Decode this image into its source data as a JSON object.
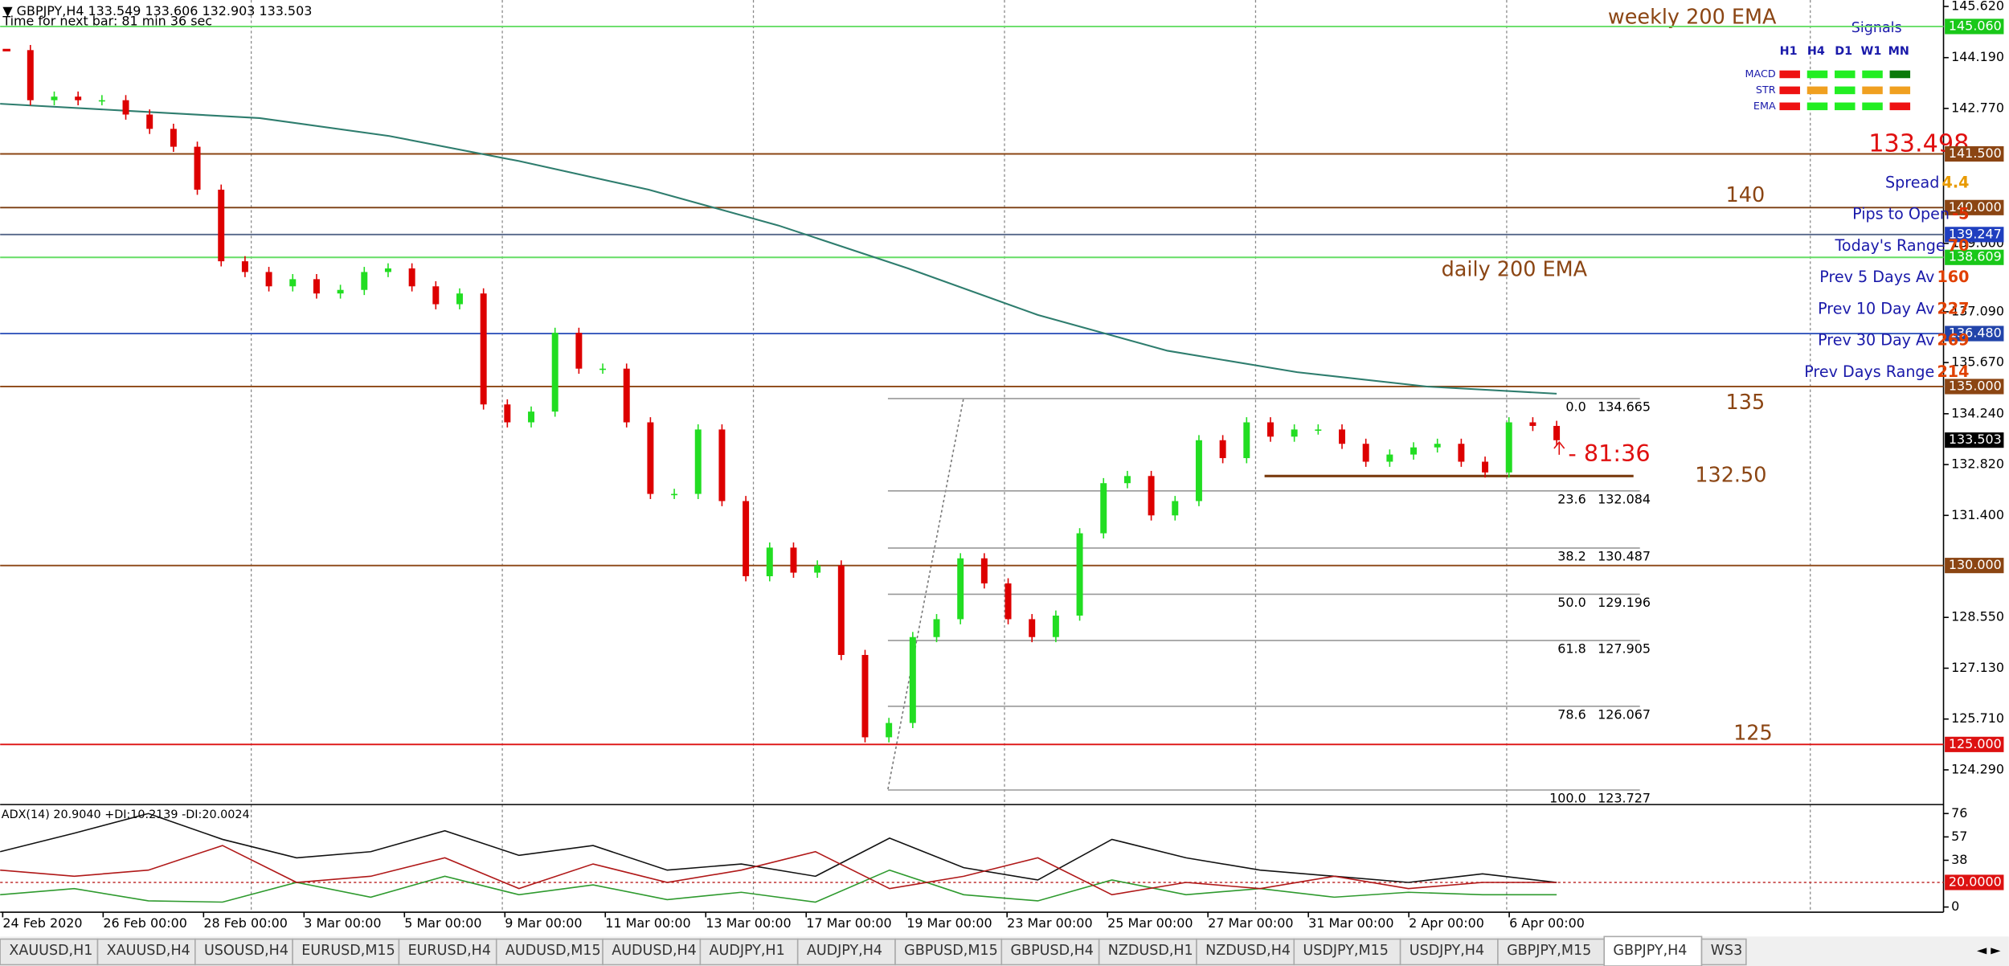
{
  "header": {
    "symbol_line": "▼ GBPJPY,H4  133.549 133.606 132.903 133.503",
    "timer": "Time for next bar: 81 min 36 sec"
  },
  "price_axis": {
    "ylim": [
      123.32,
      145.8
    ],
    "ticks": [
      {
        "value": 145.62,
        "label": "145.620"
      },
      {
        "value": 144.19,
        "label": "144.190"
      },
      {
        "value": 142.77,
        "label": "142.770"
      },
      {
        "value": 139,
        "label": "139.000"
      },
      {
        "value": 137.09,
        "label": "137.090"
      },
      {
        "value": 135.67,
        "label": "135.670"
      },
      {
        "value": 134.24,
        "label": "134.240"
      },
      {
        "value": 132.82,
        "label": "132.820"
      },
      {
        "value": 131.4,
        "label": "131.400"
      },
      {
        "value": 128.55,
        "label": "128.550"
      },
      {
        "value": 127.13,
        "label": "127.130"
      },
      {
        "value": 125.71,
        "label": "125.710"
      },
      {
        "value": 124.29,
        "label": "124.290"
      }
    ],
    "levels": [
      {
        "value": 145.06,
        "label": "145.060",
        "color": "#19c819",
        "line_color": "#66dd66"
      },
      {
        "value": 141.5,
        "label": "141.500",
        "color": "#8b4513",
        "line_color": "#8b4513"
      },
      {
        "value": 140,
        "label": "140.000",
        "color": "#8b4513",
        "line_color": "#7a3c10"
      },
      {
        "value": 139.247,
        "label": "139.247",
        "color": "#1f3fbf",
        "line_color": "#556688"
      },
      {
        "value": 138.609,
        "label": "138.609",
        "color": "#19c819",
        "line_color": "#66dd66"
      },
      {
        "value": 136.48,
        "label": "136.480",
        "color": "#2244aa",
        "line_color": "#3355bb"
      },
      {
        "value": 135,
        "label": "135.000",
        "color": "#8b4513",
        "line_color": "#8b4513"
      },
      {
        "value": 130,
        "label": "130.000",
        "color": "#8b4513",
        "line_color": "#8b4513"
      },
      {
        "value": 125,
        "label": "125.000",
        "color": "#dd1111",
        "line_color": "#dd1111"
      }
    ],
    "current_price": {
      "value": 133.503,
      "label": "133.503"
    }
  },
  "candles": {
    "up_color": "#22dd22",
    "down_color": "#dd0000",
    "closes": [
      144.4,
      143.0,
      143.1,
      143.0,
      143.0,
      142.6,
      142.2,
      141.7,
      140.5,
      138.5,
      138.2,
      137.8,
      138.0,
      137.6,
      137.7,
      138.2,
      138.3,
      137.8,
      137.3,
      137.6,
      134.5,
      134.0,
      134.3,
      136.5,
      135.5,
      135.5,
      134.0,
      132.0,
      132.0,
      133.8,
      131.8,
      129.7,
      130.5,
      129.8,
      130.0,
      127.5,
      125.2,
      125.6,
      128.0,
      128.5,
      130.2,
      129.5,
      128.5,
      128.0,
      128.6,
      130.9,
      132.3,
      132.5,
      131.4,
      131.8,
      133.5,
      133.0,
      134.0,
      133.6,
      133.8,
      133.8,
      133.4,
      132.9,
      133.1,
      133.3,
      133.4,
      132.9,
      132.6,
      134.0,
      133.9,
      133.5
    ]
  },
  "ema_long": {
    "color": "#2e7d6e",
    "values": [
      142.9,
      142.7,
      142.5,
      142.0,
      141.3,
      140.5,
      139.5,
      138.3,
      137.0,
      136.0,
      135.4,
      135.0,
      134.8
    ]
  },
  "fib": {
    "levels": [
      {
        "ratio": "0.0",
        "price": 134.665
      },
      {
        "ratio": "23.6",
        "price": 132.084
      },
      {
        "ratio": "38.2",
        "price": 130.487
      },
      {
        "ratio": "50.0",
        "price": 129.196
      },
      {
        "ratio": "61.8",
        "price": 127.905
      },
      {
        "ratio": "78.6",
        "price": 126.067
      },
      {
        "ratio": "100.0",
        "price": 123.727
      }
    ]
  },
  "annotations": {
    "weekly_ema": "weekly 200 EMA",
    "daily_ema": "daily 200 EMA",
    "level_140": "140",
    "level_135": "135",
    "level_13250": {
      "value": 132.5,
      "label": "132.50"
    },
    "level_125": "125",
    "countdown": "- 81:36"
  },
  "signals": {
    "title": "Signals",
    "columns": [
      "H1",
      "H4",
      "D1",
      "W1",
      "MN"
    ],
    "rows": [
      {
        "name": "MACD",
        "colors": [
          "#ee1111",
          "#22ee22",
          "#22ee22",
          "#22ee22",
          "#0a7a0a"
        ]
      },
      {
        "name": "STR",
        "colors": [
          "#ee1111",
          "#f0a020",
          "#22ee22",
          "#f0a020",
          "#f0a020"
        ]
      },
      {
        "name": "EMA",
        "colors": [
          "#ee1111",
          "#22ee22",
          "#22ee22",
          "#22ee22",
          "#ee1111"
        ]
      }
    ],
    "bid": "133.498",
    "info": [
      {
        "label": "Spread",
        "value": 4.4,
        "value_color": "#e89a00"
      },
      {
        "label": "Pips to Open",
        "value": -5,
        "value_color": "#e03000"
      },
      {
        "label": "Today's Range",
        "value": 70,
        "value_color": "#e04000"
      },
      {
        "label": "Prev 5 Days Av",
        "value": 160,
        "value_color": "#e04000"
      },
      {
        "label": "Prev 10 Day Av",
        "value": 227,
        "value_color": "#e04000"
      },
      {
        "label": "Prev 30 Day Av",
        "value": 269,
        "value_color": "#e04000"
      },
      {
        "label": "Prev Days Range",
        "value": 214,
        "value_color": "#e04000"
      }
    ]
  },
  "adx": {
    "label": "ADX(14) 20.9040 +DI:10.2139 -DI:20.0024",
    "ylim": [
      -4.2,
      81.2
    ],
    "ticks": [
      76,
      57,
      38,
      {
        "value": 20,
        "label": "20.0000"
      },
      0
    ],
    "series": [
      {
        "color": "#111111",
        "values": [
          45,
          60,
          76,
          55,
          40,
          45,
          62,
          42,
          50,
          30,
          35,
          25,
          56,
          32,
          22,
          55,
          40,
          30,
          25,
          20,
          27,
          20
        ]
      },
      {
        "color": "#2e9a2e",
        "values": [
          10,
          15,
          5,
          4,
          20,
          8,
          25,
          10,
          18,
          6,
          12,
          4,
          30,
          10,
          5,
          22,
          10,
          15,
          8,
          12,
          10,
          10
        ]
      },
      {
        "color": "#b01818",
        "values": [
          30,
          25,
          30,
          50,
          20,
          25,
          40,
          15,
          35,
          20,
          30,
          45,
          15,
          25,
          40,
          10,
          20,
          15,
          25,
          15,
          20,
          20
        ]
      }
    ]
  },
  "dates": [
    "24 Feb 2020",
    "26 Feb 00:00",
    "28 Feb 00:00",
    "3 Mar 00:00",
    "5 Mar 00:00",
    "9 Mar 00:00",
    "11 Mar 00:00",
    "13 Mar 00:00",
    "17 Mar 00:00",
    "19 Mar 00:00",
    "23 Mar 00:00",
    "25 Mar 00:00",
    "27 Mar 00:00",
    "31 Mar 00:00",
    "2 Apr 00:00",
    "6 Apr 00:00"
  ],
  "tabs": {
    "items": [
      "XAUUSD,H1",
      "XAUUSD,H4",
      "USOUSD,H4",
      "EURUSD,M15",
      "EURUSD,H4",
      "AUDUSD,M15",
      "AUDUSD,H4",
      "AUDJPY,H1",
      "AUDJPY,H4",
      "GBPUSD,M15",
      "GBPUSD,H4",
      "NZDUSD,H1",
      "NZDUSD,H4",
      "USDJPY,M15",
      "USDJPY,H4",
      "GBPJPY,M15",
      "GBPJPY,H4",
      "WS3"
    ],
    "active": 16
  }
}
